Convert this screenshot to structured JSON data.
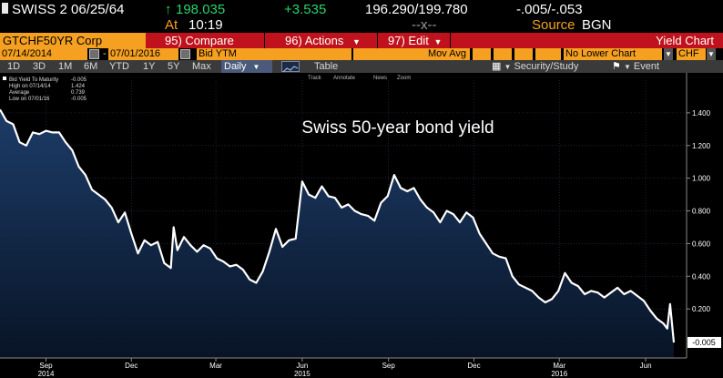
{
  "quote": {
    "security": "SWISS 2 06/25/64",
    "price": "198.035",
    "change": "+3.535",
    "bid_ask": "196.290/199.780",
    "yield_bid_ask": "-.005/-.053",
    "time_label": "At",
    "time": "10:19",
    "size": "--x--",
    "source_label": "Source",
    "source": "BGN"
  },
  "toolbar": {
    "ticker": "GTCHF50YR Corp",
    "compare_num": "95)",
    "compare_label": "Compare",
    "actions_num": "96)",
    "actions_label": "Actions",
    "edit_num": "97)",
    "edit_label": "Edit",
    "chart_title": "Yield Chart"
  },
  "range": {
    "start_date": "07/14/2014",
    "separator": "-",
    "end_date": "07/01/2016",
    "field": "Bid YTM",
    "moving_avg": "Mov Avg",
    "lower_chart": "No Lower Chart",
    "currency": "CHF"
  },
  "periods": {
    "items": [
      "1D",
      "3D",
      "1M",
      "6M",
      "YTD",
      "1Y",
      "5Y",
      "Max"
    ],
    "selected": "Daily",
    "table_label": "Table",
    "security_study": "Security/Study",
    "event": "Event"
  },
  "chart_tools": {
    "track": "Track",
    "annotate": "Annotate",
    "news": "News",
    "zoom": "Zoom"
  },
  "legend": {
    "series": "Bid Yield To Maturity",
    "series_value": "-0.005",
    "high_label": "High on 07/14/14",
    "high_value": "1.424",
    "avg_label": "Average",
    "avg_value": "0.739",
    "low_label": "Low on 07/01/16",
    "low_value": "-0.005"
  },
  "colors": {
    "line": "#ffffff",
    "fill_top": "#1d3c68",
    "fill_bottom": "#081426",
    "accent_orange": "#f5a020",
    "function_red": "#c0121c",
    "up_green": "#29d46a"
  },
  "chart_data": {
    "type": "area",
    "title": "Swiss 50-year bond yield",
    "xlabel": "",
    "ylabel": "",
    "ylim": [
      -0.1,
      1.6
    ],
    "y_ticks": [
      1.4,
      1.2,
      1.0,
      0.8,
      0.6,
      0.4,
      0.2
    ],
    "y_tick_labels": [
      "1.400",
      "1.200",
      "1.000",
      "0.800",
      "0.600",
      "0.400",
      "0.200"
    ],
    "last_value": -0.005,
    "last_value_label": "-0.005",
    "x_month_ticks": [
      {
        "label": "Sep",
        "date": "2014-09-01"
      },
      {
        "label": "Dec",
        "date": "2014-12-01"
      },
      {
        "label": "Mar",
        "date": "2015-03-01"
      },
      {
        "label": "Jun",
        "date": "2015-06-01"
      },
      {
        "label": "Sep",
        "date": "2015-09-01"
      },
      {
        "label": "Dec",
        "date": "2015-12-01"
      },
      {
        "label": "Mar",
        "date": "2016-03-01"
      },
      {
        "label": "Jun",
        "date": "2016-06-01"
      }
    ],
    "x_year_ticks": [
      {
        "label": "2014",
        "date": "2014-09-01"
      },
      {
        "label": "2015",
        "date": "2015-06-01"
      },
      {
        "label": "2016",
        "date": "2016-03-01"
      }
    ],
    "grid": true,
    "legend_position": "top-left",
    "series": [
      {
        "name": "Bid Yield To Maturity",
        "x": [
          "2014-07-14",
          "2014-07-21",
          "2014-07-28",
          "2014-08-04",
          "2014-08-11",
          "2014-08-18",
          "2014-08-25",
          "2014-09-01",
          "2014-09-08",
          "2014-09-15",
          "2014-09-22",
          "2014-09-29",
          "2014-10-06",
          "2014-10-13",
          "2014-10-20",
          "2014-10-27",
          "2014-11-03",
          "2014-11-10",
          "2014-11-17",
          "2014-11-24",
          "2014-12-01",
          "2014-12-08",
          "2014-12-15",
          "2014-12-22",
          "2014-12-29",
          "2015-01-05",
          "2015-01-12",
          "2015-01-15",
          "2015-01-19",
          "2015-01-26",
          "2015-02-02",
          "2015-02-09",
          "2015-02-16",
          "2015-02-23",
          "2015-03-02",
          "2015-03-09",
          "2015-03-16",
          "2015-03-23",
          "2015-03-30",
          "2015-04-06",
          "2015-04-13",
          "2015-04-20",
          "2015-04-27",
          "2015-05-04",
          "2015-05-11",
          "2015-05-18",
          "2015-05-25",
          "2015-06-01",
          "2015-06-08",
          "2015-06-15",
          "2015-06-22",
          "2015-06-29",
          "2015-07-06",
          "2015-07-13",
          "2015-07-20",
          "2015-07-27",
          "2015-08-03",
          "2015-08-10",
          "2015-08-17",
          "2015-08-24",
          "2015-08-31",
          "2015-09-07",
          "2015-09-14",
          "2015-09-21",
          "2015-09-28",
          "2015-10-05",
          "2015-10-12",
          "2015-10-19",
          "2015-10-26",
          "2015-11-02",
          "2015-11-09",
          "2015-11-16",
          "2015-11-23",
          "2015-11-30",
          "2015-12-07",
          "2015-12-14",
          "2015-12-21",
          "2015-12-28",
          "2016-01-04",
          "2016-01-11",
          "2016-01-18",
          "2016-01-25",
          "2016-02-01",
          "2016-02-08",
          "2016-02-15",
          "2016-02-22",
          "2016-02-29",
          "2016-03-07",
          "2016-03-14",
          "2016-03-21",
          "2016-03-28",
          "2016-04-04",
          "2016-04-11",
          "2016-04-18",
          "2016-04-25",
          "2016-05-02",
          "2016-05-09",
          "2016-05-16",
          "2016-05-23",
          "2016-05-30",
          "2016-06-06",
          "2016-06-13",
          "2016-06-20",
          "2016-06-24",
          "2016-06-27",
          "2016-07-01"
        ],
        "y": [
          1.42,
          1.35,
          1.33,
          1.22,
          1.2,
          1.28,
          1.27,
          1.29,
          1.28,
          1.28,
          1.22,
          1.17,
          1.07,
          1.02,
          0.93,
          0.9,
          0.87,
          0.82,
          0.73,
          0.79,
          0.66,
          0.54,
          0.62,
          0.59,
          0.61,
          0.48,
          0.45,
          0.7,
          0.56,
          0.64,
          0.59,
          0.55,
          0.59,
          0.57,
          0.51,
          0.49,
          0.46,
          0.47,
          0.44,
          0.38,
          0.36,
          0.43,
          0.55,
          0.69,
          0.58,
          0.62,
          0.63,
          0.98,
          0.9,
          0.88,
          0.95,
          0.89,
          0.88,
          0.82,
          0.84,
          0.8,
          0.78,
          0.77,
          0.74,
          0.85,
          0.89,
          1.02,
          0.94,
          0.92,
          0.94,
          0.87,
          0.82,
          0.79,
          0.73,
          0.8,
          0.78,
          0.73,
          0.79,
          0.76,
          0.66,
          0.6,
          0.54,
          0.52,
          0.51,
          0.4,
          0.35,
          0.33,
          0.31,
          0.27,
          0.24,
          0.26,
          0.31,
          0.42,
          0.36,
          0.34,
          0.29,
          0.31,
          0.3,
          0.27,
          0.3,
          0.33,
          0.29,
          0.31,
          0.28,
          0.25,
          0.19,
          0.14,
          0.11,
          0.08,
          0.23,
          -0.005
        ]
      }
    ]
  }
}
